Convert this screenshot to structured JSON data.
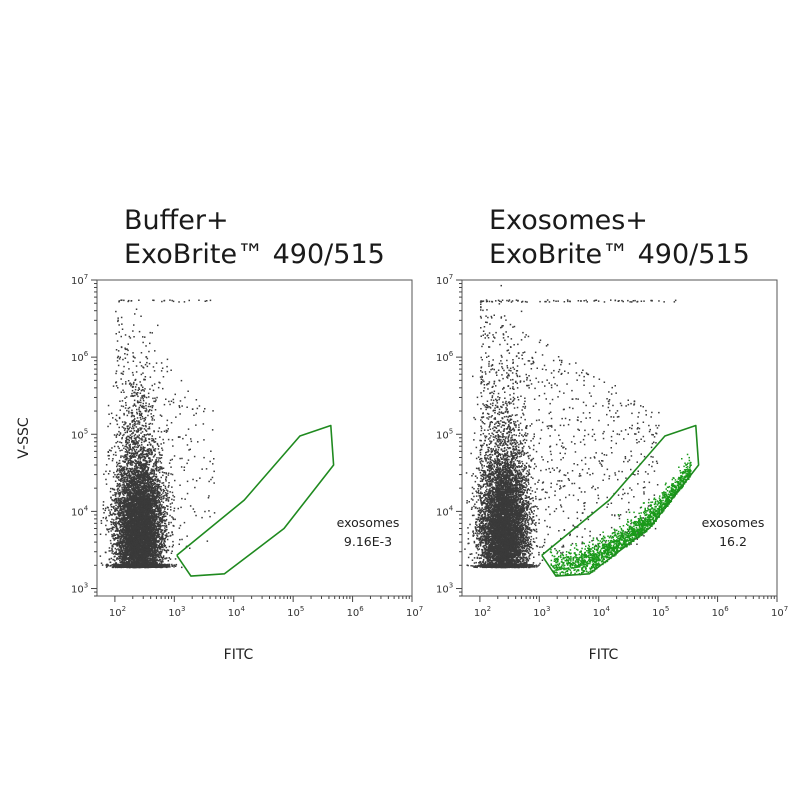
{
  "chart_data": [
    {
      "type": "scatter",
      "title_line1": "Buffer+",
      "title_line2": "ExoBrite™ 490/515",
      "xlabel": "FITC",
      "ylabel": "V-SSC",
      "xscale": "log",
      "yscale": "log",
      "xlim": [
        50,
        10000000
      ],
      "ylim": [
        800,
        10000000
      ],
      "x_ticks": [
        "10^2",
        "10^3",
        "10^4",
        "10^5",
        "10^6",
        "10^7"
      ],
      "y_ticks": [
        "10^3",
        "10^4",
        "10^5",
        "10^6",
        "10^7"
      ],
      "grid": false,
      "colors": {
        "events": "#3a3a3a",
        "gate": "#1f8a1f",
        "gated_events": "#1a9a1a"
      },
      "populations": [
        {
          "role": "main",
          "x_center": 250,
          "y_center": 5000,
          "x_spread_decades": 0.2,
          "y_spread_decades": 0.45,
          "count": 9000
        },
        {
          "role": "scatter",
          "x_range": [
            100,
            5000
          ],
          "y_range": [
            2000,
            5000000
          ],
          "count": 300
        }
      ],
      "gate": {
        "name": "exosomes",
        "value": "9.16E-3",
        "polygon": [
          [
            1100,
            2700
          ],
          [
            1900,
            1450
          ],
          [
            7000,
            1550
          ],
          [
            70000,
            6000
          ],
          [
            480000,
            40000
          ],
          [
            430000,
            130000
          ],
          [
            130000,
            95000
          ],
          [
            15000,
            14000
          ],
          [
            1100,
            2700
          ]
        ]
      }
    },
    {
      "type": "scatter",
      "title_line1": "Exosomes+",
      "title_line2": "ExoBrite™ 490/515",
      "xlabel": "FITC",
      "ylabel": "",
      "xscale": "log",
      "yscale": "log",
      "xlim": [
        50,
        10000000
      ],
      "ylim": [
        800,
        10000000
      ],
      "x_ticks": [
        "10^2",
        "10^3",
        "10^4",
        "10^5",
        "10^6",
        "10^7"
      ],
      "y_ticks": [
        "10^3",
        "10^4",
        "10^5",
        "10^6",
        "10^7"
      ],
      "grid": false,
      "colors": {
        "events": "#3a3a3a",
        "gate": "#1f8a1f",
        "gated_events": "#1a9a1a"
      },
      "populations": [
        {
          "role": "main",
          "x_center": 250,
          "y_center": 5000,
          "x_spread_decades": 0.2,
          "y_spread_decades": 0.45,
          "count": 8000
        },
        {
          "role": "scatter",
          "x_range": [
            100,
            100000
          ],
          "y_range": [
            2000,
            5000000
          ],
          "count": 900
        },
        {
          "role": "gated",
          "x_range": [
            1500,
            350000
          ],
          "y_range": [
            2000,
            60000
          ],
          "count": 1800
        }
      ],
      "gate": {
        "name": "exosomes",
        "value": "16.2",
        "polygon": [
          [
            1100,
            2700
          ],
          [
            1900,
            1450
          ],
          [
            7000,
            1550
          ],
          [
            70000,
            6000
          ],
          [
            480000,
            40000
          ],
          [
            430000,
            130000
          ],
          [
            130000,
            95000
          ],
          [
            15000,
            14000
          ],
          [
            1100,
            2700
          ]
        ]
      }
    }
  ]
}
